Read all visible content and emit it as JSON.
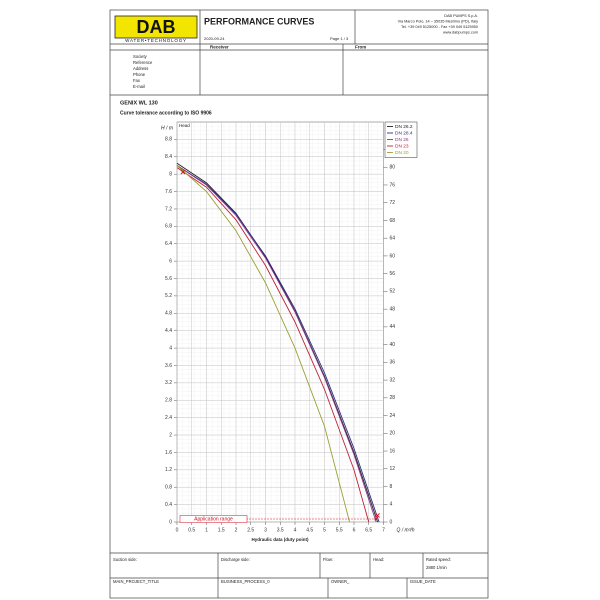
{
  "header": {
    "logo": "DAB",
    "logo_tagline": "WATER•TECHNOLOGY",
    "title": "PERFORMANCE CURVES",
    "date": "2020-09-24",
    "page": "Page 1 / 3",
    "company": [
      "DAB PUMPS S.p.A.",
      "Via Marco Polo, 14 – 35035 Mestrino (PD), Italy",
      "Tel. +39 049 5125000 - Fax +39 049 5125950",
      "www.dabpumps.com"
    ]
  },
  "contact": {
    "receiver": "Receiver",
    "from": "From",
    "fields": [
      "Society",
      "Reference",
      "Address",
      "Phone",
      "Fax",
      "E-mail"
    ]
  },
  "product": "GENIX WL 130",
  "note": "Curve tolerance according to ISO 9906",
  "chart_data": {
    "type": "line",
    "ylabel": "H / m",
    "y2label": "Δp / kPa",
    "xlabel": "Q / m³/h",
    "head_label": "Head",
    "caption": "Hydraulic data (duty point)",
    "xlim": [
      0,
      7
    ],
    "xticks": [
      0,
      0.5,
      1,
      1.5,
      2,
      2.5,
      3,
      3.5,
      4,
      4.5,
      5,
      5.5,
      6,
      6.5,
      7
    ],
    "ylim": [
      0,
      9.2
    ],
    "yticks": [
      0,
      0.4,
      0.8,
      1.2,
      1.6,
      2,
      2.4,
      2.8,
      3.2,
      3.6,
      4,
      4.4,
      4.8,
      5.2,
      5.6,
      6,
      6.4,
      6.8,
      7.2,
      7.6,
      8,
      8.4,
      8.8
    ],
    "y2lim": [
      0,
      90.2
    ],
    "y2ticks": [
      0,
      4,
      8,
      12,
      16,
      20,
      24,
      28,
      32,
      36,
      40,
      44,
      48,
      52,
      56,
      60,
      64,
      68,
      72,
      76,
      80,
      84
    ],
    "grid": true,
    "series": [
      {
        "name": "DN 26.2",
        "color": "#222222",
        "x": [
          0,
          1,
          2,
          3,
          4,
          5,
          6,
          6.8
        ],
        "values": [
          8.25,
          7.8,
          7.1,
          6.1,
          4.85,
          3.35,
          1.6,
          0
        ]
      },
      {
        "name": "DN 28.4",
        "color": "#2d2d85",
        "x": [
          0,
          1,
          2,
          3,
          4,
          5,
          6,
          6.85
        ],
        "values": [
          8.2,
          7.77,
          7.08,
          6.12,
          4.9,
          3.43,
          1.69,
          0
        ]
      },
      {
        "name": "DN 26",
        "color": "#8a3a8a",
        "x": [
          0,
          1,
          2,
          3,
          4,
          5,
          6,
          6.75
        ],
        "values": [
          8.2,
          7.75,
          7.05,
          6.07,
          4.83,
          3.32,
          1.55,
          0
        ]
      },
      {
        "name": "DN 23",
        "color": "#c0203a",
        "x": [
          0,
          1,
          2,
          3,
          4,
          5,
          6,
          6.5
        ],
        "values": [
          8.15,
          7.7,
          6.95,
          5.9,
          4.6,
          3.05,
          1.2,
          0
        ]
      },
      {
        "name": "DN 20",
        "color": "#9aa030",
        "x": [
          0,
          1,
          2,
          3,
          4,
          5,
          5.85
        ],
        "values": [
          8.2,
          7.6,
          6.7,
          5.5,
          4.0,
          2.2,
          0
        ]
      }
    ],
    "points": {
      "x": [
        0.2,
        6.8
      ],
      "values": [
        8.05,
        0.15
      ],
      "color": "#d01020"
    },
    "annotation": "Application range",
    "application_range": [
      0.1,
      6.8
    ]
  },
  "footer": {
    "row1": [
      "Suction side:",
      "Discharge side:",
      "Flow:",
      "Head:",
      "Rated speed:"
    ],
    "rated_speed": "2880 1/min",
    "row2": [
      "MAIN_PROJECT_TITLE",
      "BUSINESS_PROCESS_0",
      "OWNER_",
      "ISSUE_DATE"
    ]
  }
}
